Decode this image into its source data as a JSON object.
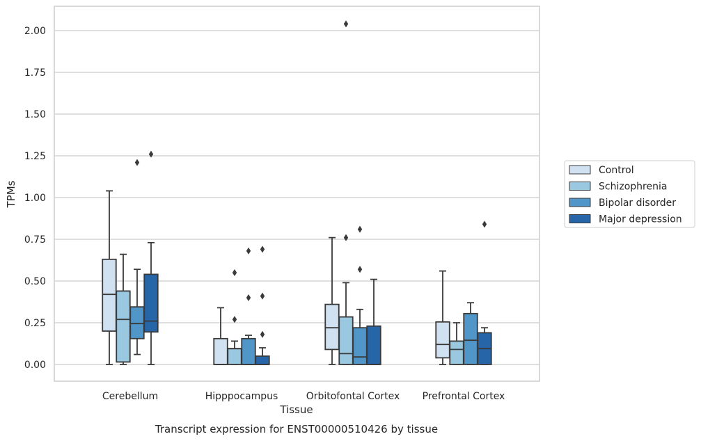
{
  "chart_data": {
    "type": "box",
    "xlabel": "Tissue",
    "ylabel": "TPMs",
    "caption": "Transcript expression for ENST00000510426 by tissue",
    "ylim": [
      -0.1,
      2.15
    ],
    "yticks": [
      0.0,
      0.25,
      0.5,
      0.75,
      1.0,
      1.25,
      1.5,
      1.75,
      2.0
    ],
    "ytick_labels": [
      "0.00",
      "0.25",
      "0.50",
      "0.75",
      "1.00",
      "1.25",
      "1.50",
      "1.75",
      "2.00"
    ],
    "grid": "horizontal",
    "legend_position": "right",
    "categories": [
      "Cerebellum",
      "Hipppocampus",
      "Orbitofontal Cortex",
      "Prefrontal Cortex"
    ],
    "series": [
      {
        "name": "Control",
        "color": "#d0e1f2",
        "boxes": [
          {
            "whislo": 0.0,
            "q1": 0.2,
            "med": 0.42,
            "q3": 0.63,
            "whishi": 1.04,
            "fliers": []
          },
          {
            "whislo": 0.0,
            "q1": 0.0,
            "med": 0.0,
            "q3": 0.155,
            "whishi": 0.34,
            "fliers": []
          },
          {
            "whislo": 0.0,
            "q1": 0.09,
            "med": 0.22,
            "q3": 0.36,
            "whishi": 0.76,
            "fliers": []
          },
          {
            "whislo": 0.0,
            "q1": 0.04,
            "med": 0.12,
            "q3": 0.255,
            "whishi": 0.56,
            "fliers": []
          }
        ]
      },
      {
        "name": "Schizophrenia",
        "color": "#9ac8e0",
        "boxes": [
          {
            "whislo": 0.0,
            "q1": 0.015,
            "med": 0.27,
            "q3": 0.44,
            "whishi": 0.66,
            "fliers": []
          },
          {
            "whislo": 0.0,
            "q1": 0.0,
            "med": 0.095,
            "q3": 0.095,
            "whishi": 0.14,
            "fliers": [
              0.27,
              0.55
            ]
          },
          {
            "whislo": 0.0,
            "q1": 0.0,
            "med": 0.065,
            "q3": 0.285,
            "whishi": 0.49,
            "fliers": [
              0.76,
              2.04
            ]
          },
          {
            "whislo": 0.0,
            "q1": 0.0,
            "med": 0.09,
            "q3": 0.14,
            "whishi": 0.25,
            "fliers": []
          }
        ]
      },
      {
        "name": "Bipolar disorder",
        "color": "#5096c8",
        "boxes": [
          {
            "whislo": 0.06,
            "q1": 0.155,
            "med": 0.245,
            "q3": 0.345,
            "whishi": 0.57,
            "fliers": [
              1.21
            ]
          },
          {
            "whislo": 0.0,
            "q1": 0.0,
            "med": 0.0,
            "q3": 0.155,
            "whishi": 0.175,
            "fliers": [
              0.4,
              0.68
            ]
          },
          {
            "whislo": 0.0,
            "q1": 0.0,
            "med": 0.045,
            "q3": 0.22,
            "whishi": 0.33,
            "fliers": [
              0.57,
              0.81
            ]
          },
          {
            "whislo": 0.0,
            "q1": 0.0,
            "med": 0.145,
            "q3": 0.305,
            "whishi": 0.37,
            "fliers": []
          }
        ]
      },
      {
        "name": "Major depression",
        "color": "#2565a8",
        "boxes": [
          {
            "whislo": 0.0,
            "q1": 0.195,
            "med": 0.26,
            "q3": 0.54,
            "whishi": 0.73,
            "fliers": [
              1.26
            ]
          },
          {
            "whislo": 0.0,
            "q1": 0.0,
            "med": 0.0,
            "q3": 0.05,
            "whishi": 0.1,
            "fliers": [
              0.18,
              0.41,
              0.69
            ]
          },
          {
            "whislo": 0.0,
            "q1": 0.0,
            "med": 0.0,
            "q3": 0.23,
            "whishi": 0.51,
            "fliers": []
          },
          {
            "whislo": 0.0,
            "q1": 0.0,
            "med": 0.095,
            "q3": 0.19,
            "whishi": 0.22,
            "fliers": [
              0.84
            ]
          }
        ]
      }
    ]
  }
}
